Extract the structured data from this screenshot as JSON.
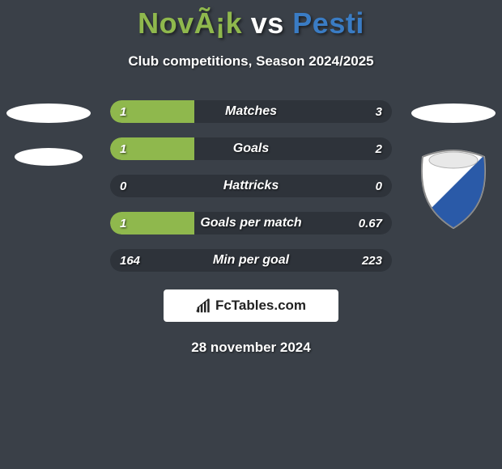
{
  "title": {
    "player1": "NovÃ¡k",
    "vs": "vs",
    "player2": "Pesti"
  },
  "subtitle": "Club competitions, Season 2024/2025",
  "colors": {
    "bg": "#3a4048",
    "bar_track": "#2e333a",
    "left_fill": "#8fb84d",
    "right_fill": "#3a7cc4",
    "player1_title": "#8fb84d",
    "player2_title": "#3a7cc4"
  },
  "bars": [
    {
      "label": "Matches",
      "left_val": "1",
      "right_val": "3",
      "left_pct": 30,
      "right_pct": 0
    },
    {
      "label": "Goals",
      "left_val": "1",
      "right_val": "2",
      "left_pct": 30,
      "right_pct": 0
    },
    {
      "label": "Hattricks",
      "left_val": "0",
      "right_val": "0",
      "left_pct": 0,
      "right_pct": 0
    },
    {
      "label": "Goals per match",
      "left_val": "1",
      "right_val": "0.67",
      "left_pct": 30,
      "right_pct": 0
    },
    {
      "label": "Min per goal",
      "left_val": "164",
      "right_val": "223",
      "left_pct": 0,
      "right_pct": 0
    }
  ],
  "brand": {
    "text": "FcTables.com"
  },
  "date": "28 november 2024",
  "crest": {
    "shield_bg": "#ffffff",
    "diagonal_color": "#2a5aa8",
    "outline": "#c0c0c0"
  }
}
